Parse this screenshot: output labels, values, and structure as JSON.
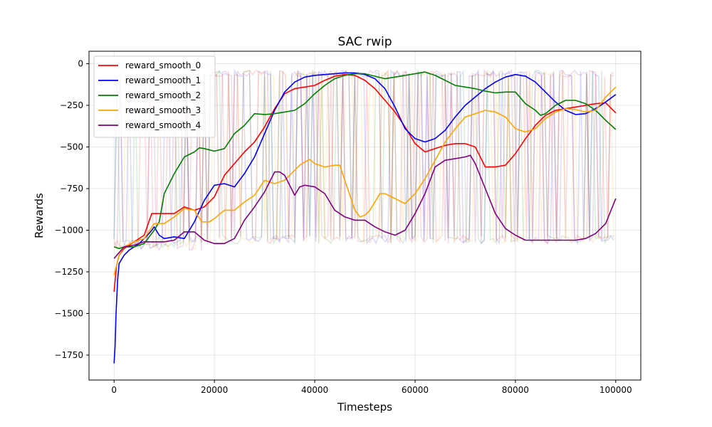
{
  "chart_data": {
    "type": "line",
    "title": "SAC rwip",
    "xlabel": "Timesteps",
    "ylabel": "Rewards",
    "xlim": [
      -5000,
      105000
    ],
    "ylim": [
      -1900,
      75
    ],
    "xticks": [
      0,
      20000,
      40000,
      60000,
      80000,
      100000
    ],
    "xtick_labels": [
      "0",
      "20000",
      "40000",
      "60000",
      "80000",
      "100000"
    ],
    "yticks": [
      0,
      -250,
      -500,
      -750,
      -1000,
      -1250,
      -1500,
      -1750
    ],
    "ytick_labels": [
      "0",
      "−250",
      "−500",
      "−750",
      "−1000",
      "−1250",
      "−1500",
      "−1750"
    ],
    "grid": true,
    "legend_position": "top-left",
    "raw_band": {
      "high": -40,
      "low": -1060,
      "alpha": 0.15
    },
    "series": [
      {
        "name": "reward_smooth_0",
        "color": "#ff0000",
        "x": [
          0,
          500,
          1000,
          2000,
          4000,
          6000,
          7500,
          9000,
          12000,
          14000,
          16000,
          18000,
          20000,
          22000,
          24000,
          26000,
          28000,
          30000,
          32000,
          34000,
          36000,
          38000,
          40000,
          42000,
          44000,
          46000,
          48000,
          50000,
          52000,
          54000,
          56000,
          58000,
          60000,
          62000,
          64000,
          66000,
          68000,
          70000,
          72000,
          74000,
          76000,
          78000,
          80000,
          82000,
          84000,
          86000,
          88000,
          90000,
          92000,
          94000,
          96000,
          98000,
          100000
        ],
        "y": [
          -1370,
          -1210,
          -1150,
          -1110,
          -1070,
          -1030,
          -900,
          -900,
          -900,
          -860,
          -880,
          -860,
          -800,
          -670,
          -600,
          -530,
          -470,
          -380,
          -270,
          -180,
          -150,
          -140,
          -130,
          -100,
          -75,
          -65,
          -70,
          -100,
          -150,
          -220,
          -290,
          -380,
          -480,
          -530,
          -510,
          -490,
          -480,
          -480,
          -500,
          -620,
          -620,
          -610,
          -540,
          -450,
          -370,
          -310,
          -280,
          -270,
          -260,
          -250,
          -240,
          -235,
          -295
        ]
      },
      {
        "name": "reward_smooth_1",
        "color": "#0000ff",
        "x": [
          0,
          200,
          400,
          700,
          1000,
          2000,
          3000,
          5000,
          7000,
          8000,
          9000,
          10000,
          12000,
          14000,
          16000,
          18000,
          20000,
          22000,
          24000,
          26000,
          28000,
          30000,
          32000,
          34000,
          36000,
          38000,
          40000,
          42000,
          44000,
          46000,
          48000,
          50000,
          52000,
          54000,
          56000,
          58000,
          60000,
          62000,
          64000,
          66000,
          68000,
          70000,
          72000,
          74000,
          76000,
          78000,
          80000,
          82000,
          84000,
          86000,
          88000,
          90000,
          92000,
          94000,
          96000,
          98000,
          100000
        ],
        "y": [
          -1800,
          -1700,
          -1500,
          -1300,
          -1200,
          -1150,
          -1120,
          -1080,
          -1020,
          -980,
          -1030,
          -1050,
          -1040,
          -1050,
          -950,
          -820,
          -730,
          -720,
          -740,
          -660,
          -560,
          -420,
          -280,
          -170,
          -110,
          -80,
          -70,
          -65,
          -60,
          -55,
          -55,
          -65,
          -90,
          -150,
          -260,
          -390,
          -450,
          -470,
          -450,
          -400,
          -320,
          -250,
          -200,
          -150,
          -110,
          -80,
          -65,
          -75,
          -110,
          -170,
          -230,
          -280,
          -305,
          -300,
          -270,
          -230,
          -185
        ]
      },
      {
        "name": "reward_smooth_2",
        "color": "#008000",
        "x": [
          0,
          1000,
          2000,
          4000,
          6000,
          8000,
          9000,
          10000,
          12000,
          14000,
          16000,
          17000,
          18000,
          20000,
          22000,
          24000,
          26000,
          28000,
          30000,
          32000,
          34000,
          36000,
          38000,
          40000,
          42000,
          44000,
          46000,
          48000,
          50000,
          52000,
          54000,
          56000,
          58000,
          60000,
          62000,
          64000,
          66000,
          68000,
          70000,
          72000,
          74000,
          76000,
          78000,
          80000,
          82000,
          84000,
          85000,
          86000,
          88000,
          90000,
          92000,
          94000,
          96000,
          98000,
          100000
        ],
        "y": [
          -1100,
          -1110,
          -1100,
          -1100,
          -1080,
          -1000,
          -950,
          -780,
          -660,
          -560,
          -530,
          -505,
          -510,
          -525,
          -510,
          -420,
          -370,
          -300,
          -305,
          -300,
          -290,
          -280,
          -240,
          -180,
          -130,
          -90,
          -70,
          -60,
          -60,
          -75,
          -90,
          -80,
          -70,
          -60,
          -50,
          -70,
          -100,
          -130,
          -140,
          -150,
          -165,
          -175,
          -170,
          -170,
          -240,
          -280,
          -310,
          -300,
          -250,
          -220,
          -220,
          -240,
          -280,
          -340,
          -395
        ]
      },
      {
        "name": "reward_smooth_3",
        "color": "#ffa500",
        "x": [
          0,
          1000,
          2000,
          4000,
          6000,
          8000,
          10000,
          12000,
          14000,
          16000,
          17500,
          19000,
          20000,
          22000,
          24000,
          26000,
          28000,
          30000,
          32000,
          34000,
          36000,
          37000,
          38000,
          39000,
          40000,
          42000,
          44000,
          45000,
          46000,
          48000,
          49000,
          50000,
          51000,
          52000,
          53000,
          54000,
          56000,
          58000,
          60000,
          62000,
          64000,
          66000,
          68000,
          70000,
          72000,
          74000,
          76000,
          78000,
          80000,
          82000,
          84000,
          86000,
          88000,
          90000,
          92000,
          94000,
          96000,
          98000,
          100000
        ],
        "y": [
          -1270,
          -1150,
          -1100,
          -1070,
          -1050,
          -960,
          -960,
          -920,
          -870,
          -880,
          -950,
          -950,
          -930,
          -880,
          -880,
          -830,
          -790,
          -700,
          -720,
          -700,
          -640,
          -610,
          -590,
          -575,
          -600,
          -620,
          -610,
          -610,
          -700,
          -880,
          -920,
          -910,
          -880,
          -830,
          -780,
          -780,
          -810,
          -840,
          -780,
          -690,
          -580,
          -470,
          -390,
          -320,
          -300,
          -280,
          -290,
          -320,
          -390,
          -410,
          -390,
          -330,
          -290,
          -270,
          -275,
          -290,
          -280,
          -200,
          -140
        ]
      },
      {
        "name": "reward_smooth_4",
        "color": "#800080",
        "x": [
          0,
          2000,
          4000,
          6000,
          8000,
          10000,
          12000,
          14000,
          16000,
          18000,
          20000,
          22000,
          24000,
          26000,
          28000,
          30000,
          32000,
          33000,
          34000,
          36000,
          37000,
          38000,
          40000,
          42000,
          44000,
          46000,
          48000,
          50000,
          52000,
          54000,
          56000,
          58000,
          60000,
          62000,
          64000,
          66000,
          68000,
          70000,
          71000,
          72000,
          74000,
          76000,
          78000,
          80000,
          82000,
          84000,
          86000,
          88000,
          90000,
          92000,
          94000,
          96000,
          98000,
          100000
        ],
        "y": [
          -1170,
          -1100,
          -1090,
          -1070,
          -1070,
          -1070,
          -1060,
          -1010,
          -1010,
          -1060,
          -1080,
          -1080,
          -1050,
          -940,
          -860,
          -770,
          -650,
          -650,
          -670,
          -790,
          -740,
          -730,
          -740,
          -780,
          -880,
          -920,
          -940,
          -940,
          -980,
          -1010,
          -1030,
          -1000,
          -900,
          -780,
          -620,
          -580,
          -570,
          -560,
          -550,
          -600,
          -750,
          -900,
          -990,
          -1030,
          -1060,
          -1060,
          -1060,
          -1060,
          -1060,
          -1060,
          -1050,
          -1020,
          -960,
          -810
        ]
      }
    ]
  }
}
